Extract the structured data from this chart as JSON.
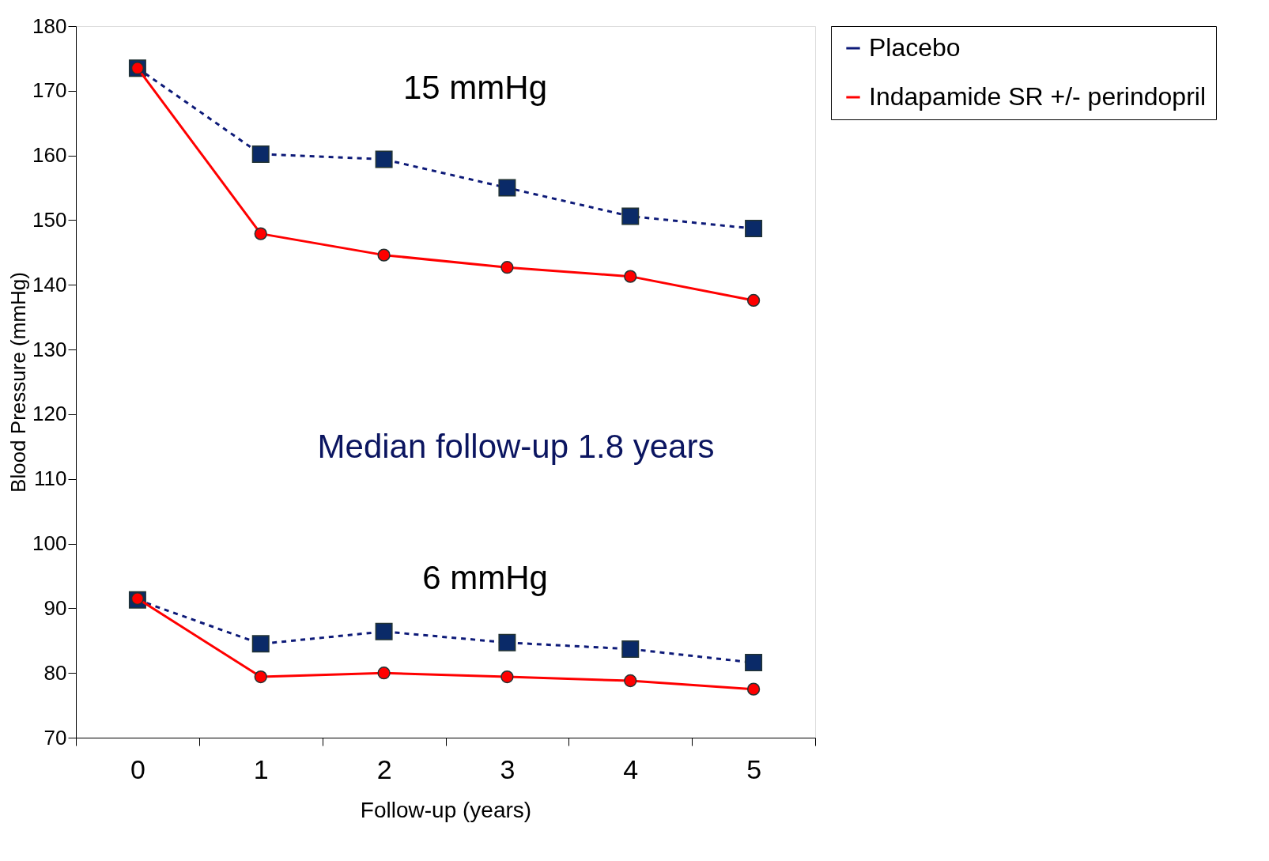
{
  "chart_data": {
    "type": "line",
    "xlabel": "Follow-up (years)",
    "ylabel": "Blood Pressure (mmHg)",
    "categories": [
      "0",
      "1",
      "2",
      "3",
      "4",
      "5"
    ],
    "series": [
      {
        "name": "Placebo",
        "color": "#0d1a78",
        "marker": "square",
        "line_style": "dashed",
        "values": [
          173.5,
          160.2,
          159.4,
          155.0,
          150.6,
          148.7
        ]
      },
      {
        "name": "Indapamide SR +/- perindopril",
        "color": "#ff0000",
        "marker": "circle",
        "line_style": "solid",
        "values": [
          173.5,
          147.9,
          144.6,
          142.7,
          141.3,
          137.6
        ]
      },
      {
        "color": "#0d1a78",
        "marker": "square",
        "line_style": "dashed",
        "values": [
          91.3,
          84.5,
          86.4,
          84.7,
          83.7,
          81.6
        ]
      },
      {
        "color": "#ff0000",
        "marker": "circle",
        "line_style": "solid",
        "values": [
          91.5,
          79.4,
          80.0,
          79.4,
          78.8,
          77.5
        ]
      }
    ],
    "ylim": [
      70,
      180
    ],
    "yticks": [
      70,
      80,
      90,
      100,
      110,
      120,
      130,
      140,
      150,
      160,
      170,
      180
    ],
    "grid": false,
    "legend": "right",
    "annotations": [
      "15 mmHg",
      "Median follow-up 1.8 years",
      "6 mmHg"
    ]
  }
}
